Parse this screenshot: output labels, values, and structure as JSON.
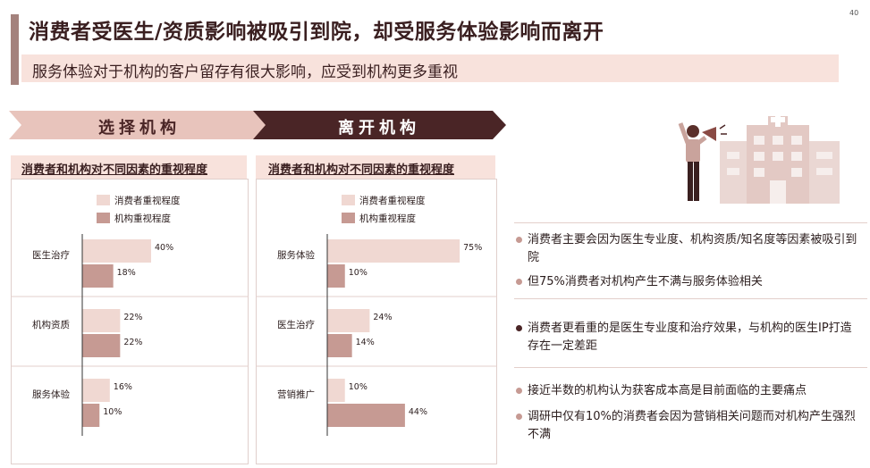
{
  "page": {
    "title": "消费者受医生/资质影响被吸引到院，却受服务体验影响而离开",
    "subtitle": "服务体验对于机构的客户留存有很大影响，应受到机构更多重视",
    "page_number": "40"
  },
  "colors": {
    "consumer": "#f0d8d2",
    "institution": "#c69a93",
    "dark": "#4a2526",
    "accent": "#a4827d"
  },
  "arrows": {
    "choose_label": "选择机构",
    "leave_label": "离开机构"
  },
  "chart_data": [
    {
      "type": "bar",
      "orientation": "horizontal",
      "title": "消费者和机构对不同因素的重视程度",
      "categories": [
        "医生治疗",
        "机构资质",
        "服务体验"
      ],
      "series": [
        {
          "name": "消费者重视程度",
          "values": [
            40,
            22,
            16
          ],
          "labels": [
            "40%",
            "22%",
            "16%"
          ]
        },
        {
          "name": "机构重视程度",
          "values": [
            18,
            22,
            10
          ],
          "labels": [
            "18%",
            "22%",
            "10%"
          ]
        }
      ],
      "xlim": [
        0,
        80
      ]
    },
    {
      "type": "bar",
      "orientation": "horizontal",
      "title": "消费者和机构对不同因素的重视程度",
      "categories": [
        "服务体验",
        "医生治疗",
        "营销推广"
      ],
      "series": [
        {
          "name": "消费者重视程度",
          "values": [
            75,
            24,
            10
          ],
          "labels": [
            "75%",
            "24%",
            "10%"
          ]
        },
        {
          "name": "机构重视程度",
          "values": [
            10,
            14,
            44
          ],
          "labels": [
            "10%",
            "14%",
            "44%"
          ]
        }
      ],
      "xlim": [
        0,
        80
      ]
    }
  ],
  "bullets": [
    {
      "text": "消费者主要会因为医生专业度、机构资质/知名度等因素被吸引到院",
      "color": "#c69a93"
    },
    {
      "text": "但75%消费者对机构产生不满与服务体验相关",
      "color": "#c69a93"
    },
    {
      "text": "消费者更看重的是医生专业度和治疗效果，与机构的医生IP打造存在一定差距",
      "color": "#4a2526"
    },
    {
      "text": "接近半数的机构认为获客成本高是目前面临的主要痛点",
      "color": "#c69a93"
    },
    {
      "text": "调研中仅有10%的消费者会因为营销相关问题而对机构产生强烈不满",
      "color": "#c69a93"
    }
  ]
}
